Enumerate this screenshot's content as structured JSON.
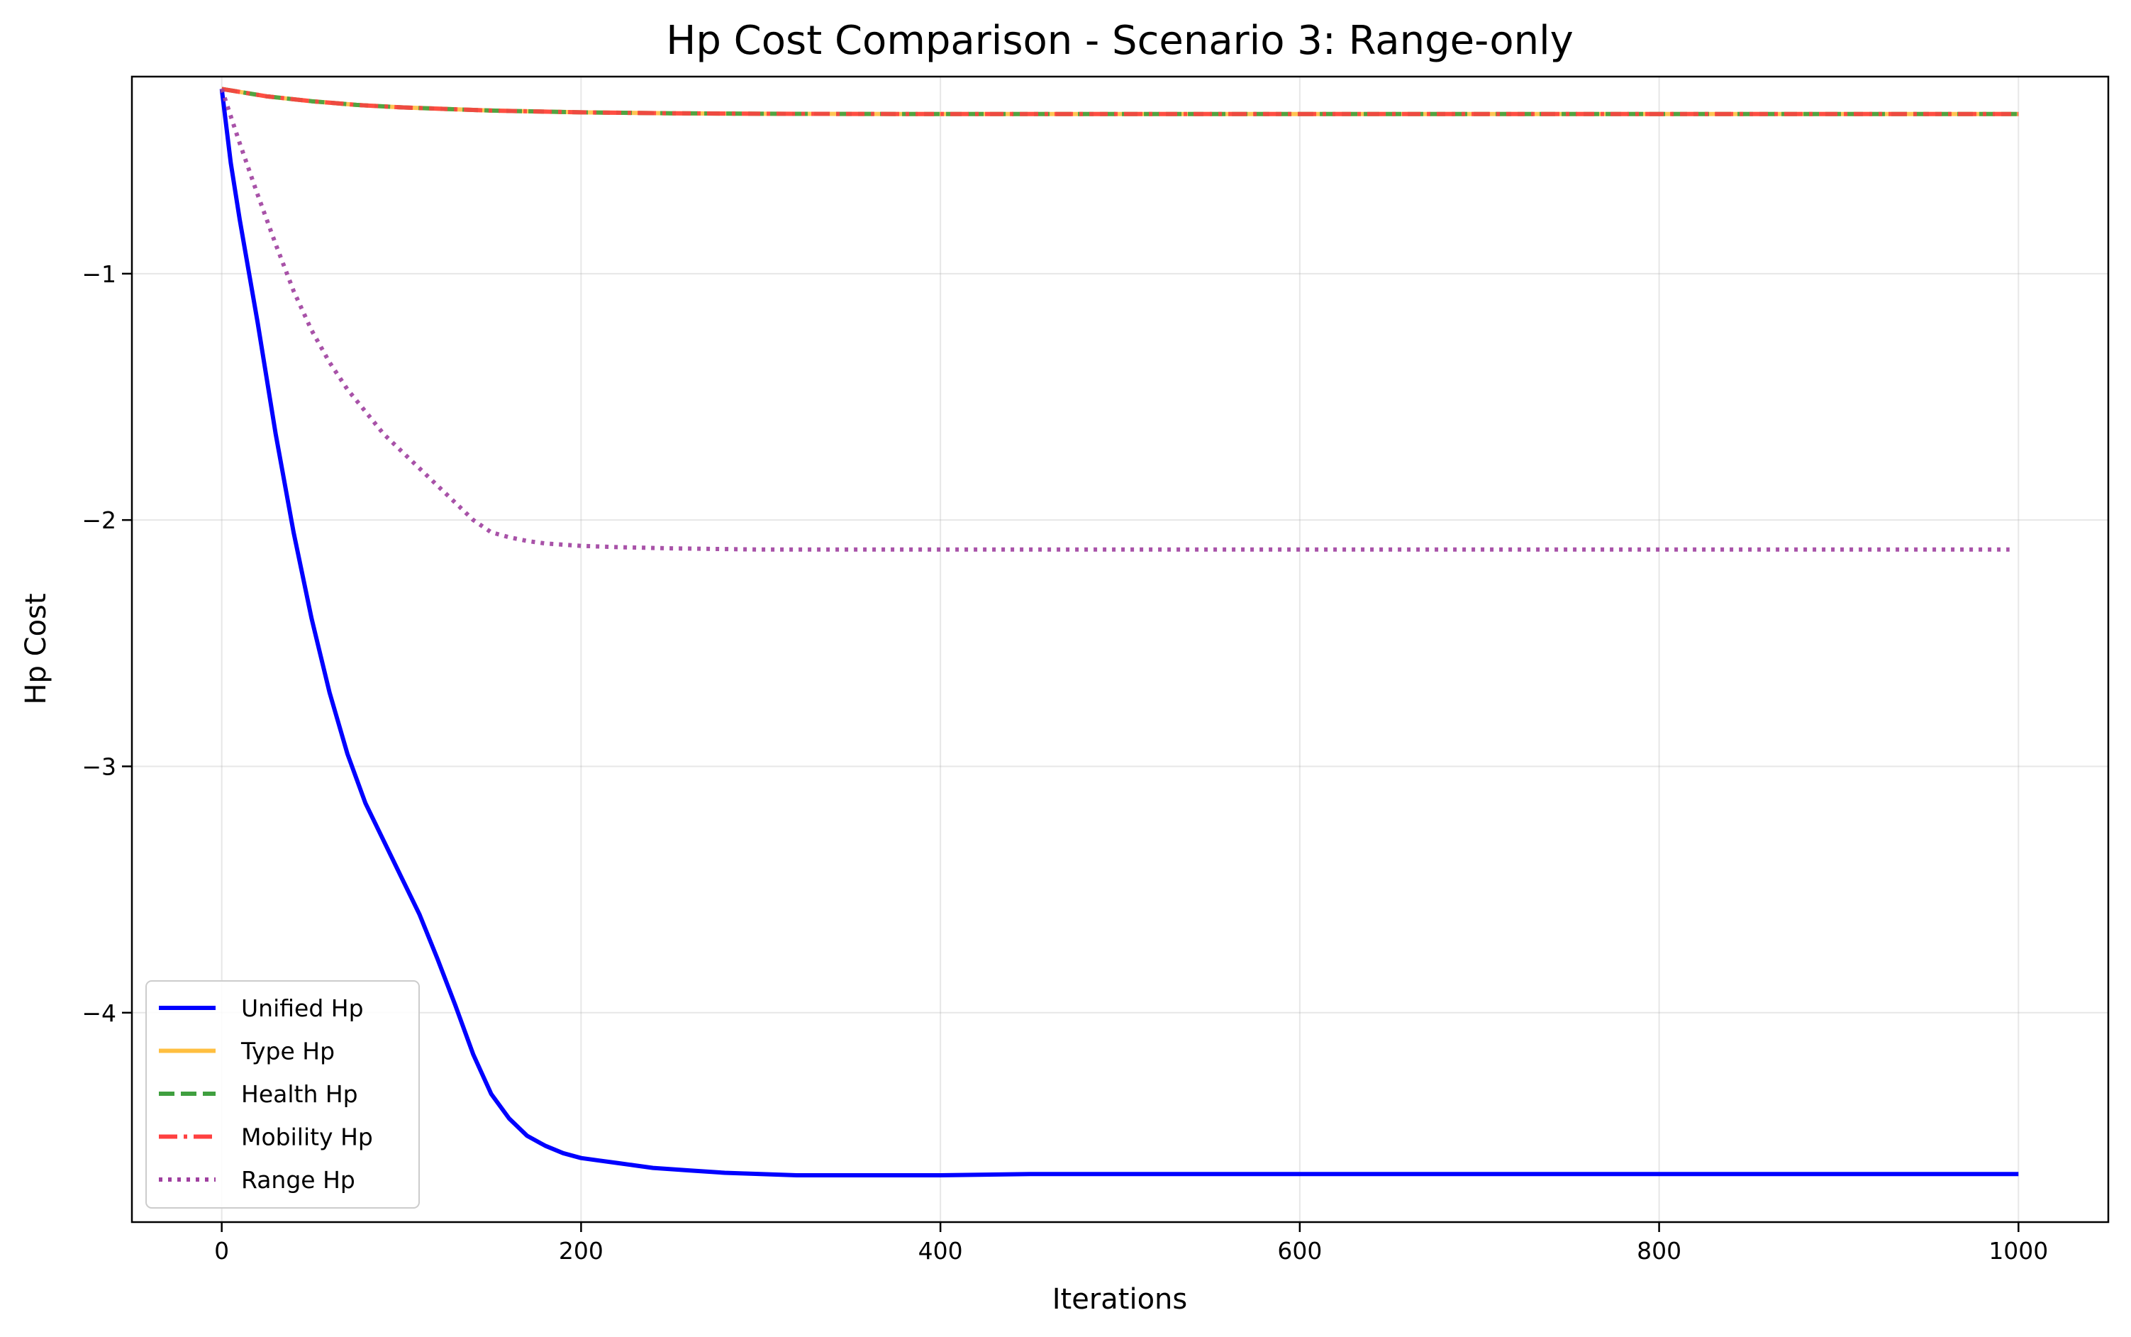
{
  "chart_data": {
    "type": "line",
    "title": "Hp Cost Comparison - Scenario 3: Range-only",
    "xlabel": "Iterations",
    "ylabel": "Hp Cost",
    "xlim": [
      -50,
      1050
    ],
    "ylim": [
      -4.85,
      -0.2
    ],
    "xticks": [
      0,
      200,
      400,
      600,
      800,
      1000
    ],
    "yticks": [
      -1,
      -2,
      -3,
      -4
    ],
    "xtick_labels": [
      "0",
      "200",
      "400",
      "600",
      "800",
      "1000"
    ],
    "ytick_labels": [
      "−1",
      "−2",
      "−3",
      "−4"
    ],
    "grid": true,
    "legend_position": "lower-left",
    "series": [
      {
        "name": "Unified Hp",
        "color": "#0000ff",
        "style": "solid",
        "x": [
          0,
          5,
          10,
          20,
          30,
          40,
          50,
          60,
          70,
          80,
          90,
          100,
          110,
          120,
          130,
          140,
          150,
          160,
          170,
          180,
          190,
          200,
          210,
          220,
          230,
          240,
          260,
          280,
          300,
          320,
          350,
          400,
          450,
          500,
          600,
          700,
          800,
          900,
          1000
        ],
        "y": [
          -0.25,
          -0.55,
          -0.78,
          -1.2,
          -1.65,
          -2.05,
          -2.4,
          -2.7,
          -2.95,
          -3.15,
          -3.3,
          -3.45,
          -3.6,
          -3.78,
          -3.97,
          -4.17,
          -4.33,
          -4.43,
          -4.5,
          -4.54,
          -4.57,
          -4.59,
          -4.6,
          -4.61,
          -4.62,
          -4.63,
          -4.64,
          -4.65,
          -4.655,
          -4.66,
          -4.66,
          -4.66,
          -4.655,
          -4.655,
          -4.655,
          -4.655,
          -4.655,
          -4.655,
          -4.655
        ]
      },
      {
        "name": "Type Hp",
        "color": "#ffbf40",
        "style": "solid",
        "x": [
          0,
          25,
          50,
          75,
          100,
          150,
          200,
          250,
          300,
          400,
          500,
          600,
          700,
          800,
          900,
          1000
        ],
        "y": [
          -0.25,
          -0.28,
          -0.3,
          -0.315,
          -0.325,
          -0.338,
          -0.345,
          -0.349,
          -0.351,
          -0.352,
          -0.352,
          -0.352,
          -0.352,
          -0.352,
          -0.352,
          -0.352
        ]
      },
      {
        "name": "Health Hp",
        "color": "#3f9f3f",
        "style": "dashed",
        "x": [
          0,
          25,
          50,
          75,
          100,
          150,
          200,
          250,
          300,
          400,
          500,
          600,
          700,
          800,
          900,
          1000
        ],
        "y": [
          -0.25,
          -0.28,
          -0.3,
          -0.315,
          -0.325,
          -0.338,
          -0.345,
          -0.349,
          -0.351,
          -0.352,
          -0.352,
          -0.352,
          -0.352,
          -0.352,
          -0.352,
          -0.352
        ]
      },
      {
        "name": "Mobility Hp",
        "color": "#ff4040",
        "style": "dashdot",
        "x": [
          0,
          25,
          50,
          75,
          100,
          150,
          200,
          250,
          300,
          400,
          500,
          600,
          700,
          800,
          900,
          1000
        ],
        "y": [
          -0.25,
          -0.28,
          -0.3,
          -0.315,
          -0.325,
          -0.338,
          -0.345,
          -0.349,
          -0.351,
          -0.352,
          -0.352,
          -0.352,
          -0.352,
          -0.352,
          -0.352,
          -0.352
        ]
      },
      {
        "name": "Range Hp",
        "color": "#9f3f9f",
        "style": "dotted",
        "x": [
          0,
          10,
          20,
          30,
          40,
          50,
          60,
          70,
          80,
          90,
          100,
          110,
          120,
          130,
          140,
          150,
          160,
          170,
          180,
          190,
          200,
          220,
          250,
          300,
          350,
          400,
          500,
          600,
          700,
          800,
          900,
          995
        ],
        "y": [
          -0.25,
          -0.47,
          -0.68,
          -0.88,
          -1.07,
          -1.23,
          -1.36,
          -1.47,
          -1.56,
          -1.65,
          -1.72,
          -1.79,
          -1.86,
          -1.93,
          -2.0,
          -2.05,
          -2.07,
          -2.085,
          -2.095,
          -2.1,
          -2.105,
          -2.11,
          -2.115,
          -2.12,
          -2.12,
          -2.12,
          -2.12,
          -2.12,
          -2.12,
          -2.12,
          -2.12,
          -2.12
        ]
      }
    ]
  }
}
